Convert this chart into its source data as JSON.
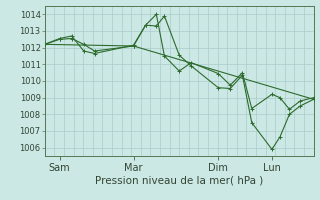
{
  "xlabel": "Pression niveau de la mer( hPa )",
  "background_color": "#cce8e4",
  "grid_color": "#aacccc",
  "line_color": "#2d6b2d",
  "spine_color": "#557755",
  "tick_color": "#557755",
  "ylim": [
    1005.5,
    1014.5
  ],
  "xlim": [
    0,
    1
  ],
  "xtick_labels": [
    "Sam",
    "Mar",
    "Dim",
    "Lun"
  ],
  "xtick_positions": [
    0.055,
    0.33,
    0.645,
    0.845
  ],
  "ytick_values": [
    1006,
    1007,
    1008,
    1009,
    1010,
    1011,
    1012,
    1013,
    1014
  ],
  "num_xgrid": 28,
  "series": [
    {
      "x": [
        0.0,
        0.055,
        0.1,
        0.145,
        0.185,
        0.33,
        0.375,
        0.415,
        0.445,
        0.5,
        0.545,
        0.645,
        0.69,
        0.735,
        0.77,
        0.845,
        0.875,
        0.91,
        0.95,
        1.0
      ],
      "y": [
        1012.2,
        1012.5,
        1012.55,
        1012.2,
        1011.8,
        1012.1,
        1013.35,
        1013.3,
        1013.9,
        1011.55,
        1010.9,
        1009.6,
        1009.55,
        1010.35,
        1007.5,
        1005.9,
        1006.65,
        1008.0,
        1008.5,
        1008.9
      ]
    },
    {
      "x": [
        0.0,
        0.055,
        0.1,
        0.145,
        0.185,
        0.33,
        0.375,
        0.415,
        0.445,
        0.5,
        0.545,
        0.645,
        0.69,
        0.735,
        0.77,
        0.845,
        0.875,
        0.91,
        0.95,
        1.0
      ],
      "y": [
        1012.2,
        1012.55,
        1012.7,
        1011.8,
        1011.65,
        1012.15,
        1013.35,
        1014.0,
        1011.5,
        1010.6,
        1011.1,
        1010.45,
        1009.75,
        1010.5,
        1008.35,
        1009.2,
        1009.0,
        1008.3,
        1008.8,
        1009.0
      ]
    },
    {
      "x": [
        0.0,
        0.33,
        1.0
      ],
      "y": [
        1012.2,
        1012.1,
        1008.9
      ]
    }
  ]
}
